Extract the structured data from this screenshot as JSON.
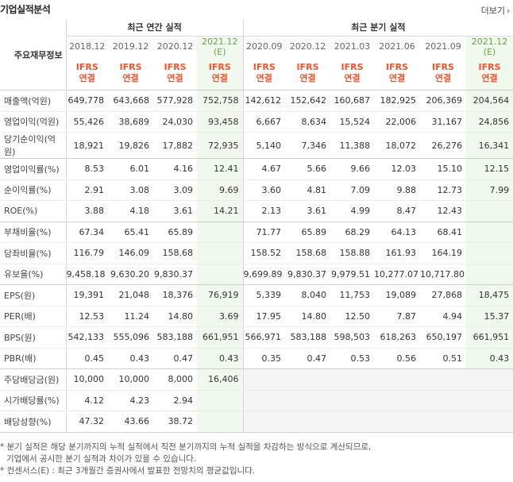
{
  "header": {
    "title": "기업실적분석",
    "more_label": "더보기",
    "more_arrow": "›"
  },
  "table": {
    "row_header_label": "주요재무정보",
    "groups": {
      "annual": "최근 연간 실적",
      "quarterly": "최근 분기 실적"
    },
    "columns": [
      {
        "period": "2018.12",
        "basis1": "IFRS",
        "basis2": "연결",
        "estimate": false
      },
      {
        "period": "2019.12",
        "basis1": "IFRS",
        "basis2": "연결",
        "estimate": false
      },
      {
        "period": "2020.12",
        "basis1": "IFRS",
        "basis2": "연결",
        "estimate": false
      },
      {
        "period": "2021.12 (E)",
        "basis1": "IFRS",
        "basis2": "연결",
        "estimate": true
      },
      {
        "period": "2020.09",
        "basis1": "IFRS",
        "basis2": "연결",
        "estimate": false
      },
      {
        "period": "2020.12",
        "basis1": "IFRS",
        "basis2": "연결",
        "estimate": false
      },
      {
        "period": "2021.03",
        "basis1": "IFRS",
        "basis2": "연결",
        "estimate": false
      },
      {
        "period": "2021.06",
        "basis1": "IFRS",
        "basis2": "연결",
        "estimate": false
      },
      {
        "period": "2021.09",
        "basis1": "IFRS",
        "basis2": "연결",
        "estimate": false
      },
      {
        "period": "2021.12 (E)",
        "basis1": "IFRS",
        "basis2": "연결",
        "estimate": true
      }
    ],
    "rows": [
      {
        "label": "매출액(억원)",
        "values": [
          "649,778",
          "643,668",
          "577,928",
          "752,758",
          "142,612",
          "152,642",
          "160,687",
          "182,925",
          "206,369",
          "204,564"
        ],
        "group_end": false
      },
      {
        "label": "영업이익(억원)",
        "values": [
          "55,426",
          "38,689",
          "24,030",
          "93,458",
          "6,667",
          "8,634",
          "15,524",
          "22,006",
          "31,167",
          "24,856"
        ],
        "group_end": false
      },
      {
        "label": "당기순이익(억원)",
        "values": [
          "18,921",
          "19,826",
          "17,882",
          "72,935",
          "5,140",
          "7,346",
          "11,388",
          "18,072",
          "26,276",
          "16,341"
        ],
        "group_end": true
      },
      {
        "label": "영업이익률(%)",
        "values": [
          "8.53",
          "6.01",
          "4.16",
          "12.41",
          "4.67",
          "5.66",
          "9.66",
          "12.03",
          "15.10",
          "12.15"
        ],
        "group_end": false
      },
      {
        "label": "순이익률(%)",
        "values": [
          "2.91",
          "3.08",
          "3.09",
          "9.69",
          "3.60",
          "4.81",
          "7.09",
          "9.88",
          "12.73",
          "7.99"
        ],
        "group_end": false
      },
      {
        "label": "ROE(%)",
        "values": [
          "3.88",
          "4.18",
          "3.61",
          "14.21",
          "2.13",
          "3.61",
          "4.99",
          "8.47",
          "12.43",
          ""
        ],
        "group_end": true
      },
      {
        "label": "부채비율(%)",
        "values": [
          "67.34",
          "65.41",
          "65.89",
          "",
          "71.77",
          "65.89",
          "68.29",
          "64.13",
          "68.41",
          ""
        ],
        "group_end": false
      },
      {
        "label": "당좌비율(%)",
        "values": [
          "116.79",
          "146.09",
          "158.68",
          "",
          "158.52",
          "158.68",
          "158.88",
          "161.93",
          "164.19",
          ""
        ],
        "group_end": false
      },
      {
        "label": "유보율(%)",
        "values": [
          "9,458.18",
          "9,630.20",
          "9,830.37",
          "",
          "9,699.89",
          "9,830.37",
          "9,979.51",
          "10,277.07",
          "10,717.80",
          ""
        ],
        "group_end": true
      },
      {
        "label": "EPS(원)",
        "values": [
          "19,391",
          "21,048",
          "18,376",
          "76,919",
          "5,339",
          "8,040",
          "11,753",
          "19,089",
          "27,868",
          "18,475"
        ],
        "group_end": false
      },
      {
        "label": "PER(배)",
        "values": [
          "12.53",
          "11.24",
          "14.80",
          "3.69",
          "17.95",
          "14.80",
          "12.50",
          "7.87",
          "4.94",
          "15.37"
        ],
        "group_end": false
      },
      {
        "label": "BPS(원)",
        "values": [
          "542,133",
          "555,096",
          "583,188",
          "661,951",
          "566,971",
          "583,188",
          "598,503",
          "618,263",
          "650,197",
          "661,951"
        ],
        "group_end": false
      },
      {
        "label": "PBR(배)",
        "values": [
          "0.45",
          "0.43",
          "0.47",
          "0.43",
          "0.35",
          "0.47",
          "0.53",
          "0.56",
          "0.51",
          "0.43"
        ],
        "group_end": true
      },
      {
        "label": "주당배당금(원)",
        "values": [
          "10,000",
          "10,000",
          "8,000",
          "16,406",
          "",
          "",
          "",
          "",
          "",
          ""
        ],
        "group_end": false
      },
      {
        "label": "시가배당률(%)",
        "values": [
          "4.12",
          "4.23",
          "2.94",
          "",
          "",
          "",
          "",
          "",
          "",
          ""
        ],
        "group_end": false
      },
      {
        "label": "배당성향(%)",
        "values": [
          "47.32",
          "43.66",
          "38.72",
          "",
          "",
          "",
          "",
          "",
          "",
          ""
        ],
        "group_end": true
      }
    ]
  },
  "notes": {
    "line1": "* 분기 실적은 해당 분기까지의 누적 실적에서 직전 분기까지의 누적 실적을 차감하는 방식으로 계산되므로,",
    "line2": "기업에서 공시한 분기 실적과 차이가 있을 수 있습니다.",
    "line3": "* 컨센서스(E) : 최근 3개월간 증권사에서 발표한 전망치의 평균값입니다."
  }
}
